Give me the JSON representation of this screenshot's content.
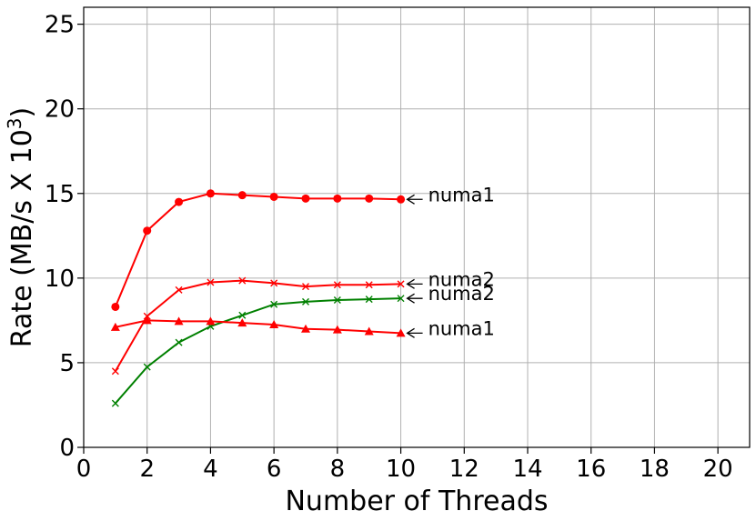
{
  "chart_data": {
    "type": "line",
    "title": "",
    "xlabel": "Number of Threads",
    "ylabel_main": "Rate (MB/s X 10",
    "ylabel_sup": "3",
    "ylabel_close": ")",
    "xlim": [
      0,
      21
    ],
    "ylim": [
      0,
      26
    ],
    "xticks": [
      0,
      2,
      4,
      6,
      8,
      10,
      12,
      14,
      16,
      18,
      20
    ],
    "yticks": [
      0,
      5,
      10,
      15,
      20,
      25
    ],
    "grid": true,
    "legend": "none",
    "series": [
      {
        "color": "#ff0000",
        "marker": "circle",
        "x": [
          1,
          2,
          3,
          4,
          5,
          6,
          7,
          8,
          9,
          10
        ],
        "y": [
          8.3,
          12.8,
          14.5,
          15.0,
          14.9,
          14.8,
          14.7,
          14.7,
          14.7,
          14.65
        ]
      },
      {
        "color": "#ff0000",
        "marker": "x",
        "x": [
          1,
          2,
          3,
          4,
          5,
          6,
          7,
          8,
          9,
          10
        ],
        "y": [
          4.5,
          7.75,
          9.3,
          9.75,
          9.85,
          9.7,
          9.5,
          9.6,
          9.6,
          9.65
        ]
      },
      {
        "color": "#008000",
        "marker": "x",
        "x": [
          1,
          2,
          3,
          4,
          5,
          6,
          7,
          8,
          9,
          10
        ],
        "y": [
          2.6,
          4.75,
          6.2,
          7.15,
          7.8,
          8.45,
          8.6,
          8.7,
          8.75,
          8.8
        ]
      },
      {
        "color": "#ff0000",
        "marker": "triangle",
        "x": [
          1,
          2,
          3,
          4,
          5,
          6,
          7,
          8,
          9,
          10
        ],
        "y": [
          7.1,
          7.5,
          7.45,
          7.45,
          7.35,
          7.25,
          7.0,
          6.95,
          6.85,
          6.75
        ]
      }
    ],
    "annotations": [
      {
        "text": "numa1",
        "x": 10,
        "y": 14.65
      },
      {
        "text": "numa2",
        "x": 10,
        "y": 9.65
      },
      {
        "text": "numa2",
        "x": 10,
        "y": 8.8
      },
      {
        "text": "numa1",
        "x": 10,
        "y": 6.75
      }
    ]
  }
}
